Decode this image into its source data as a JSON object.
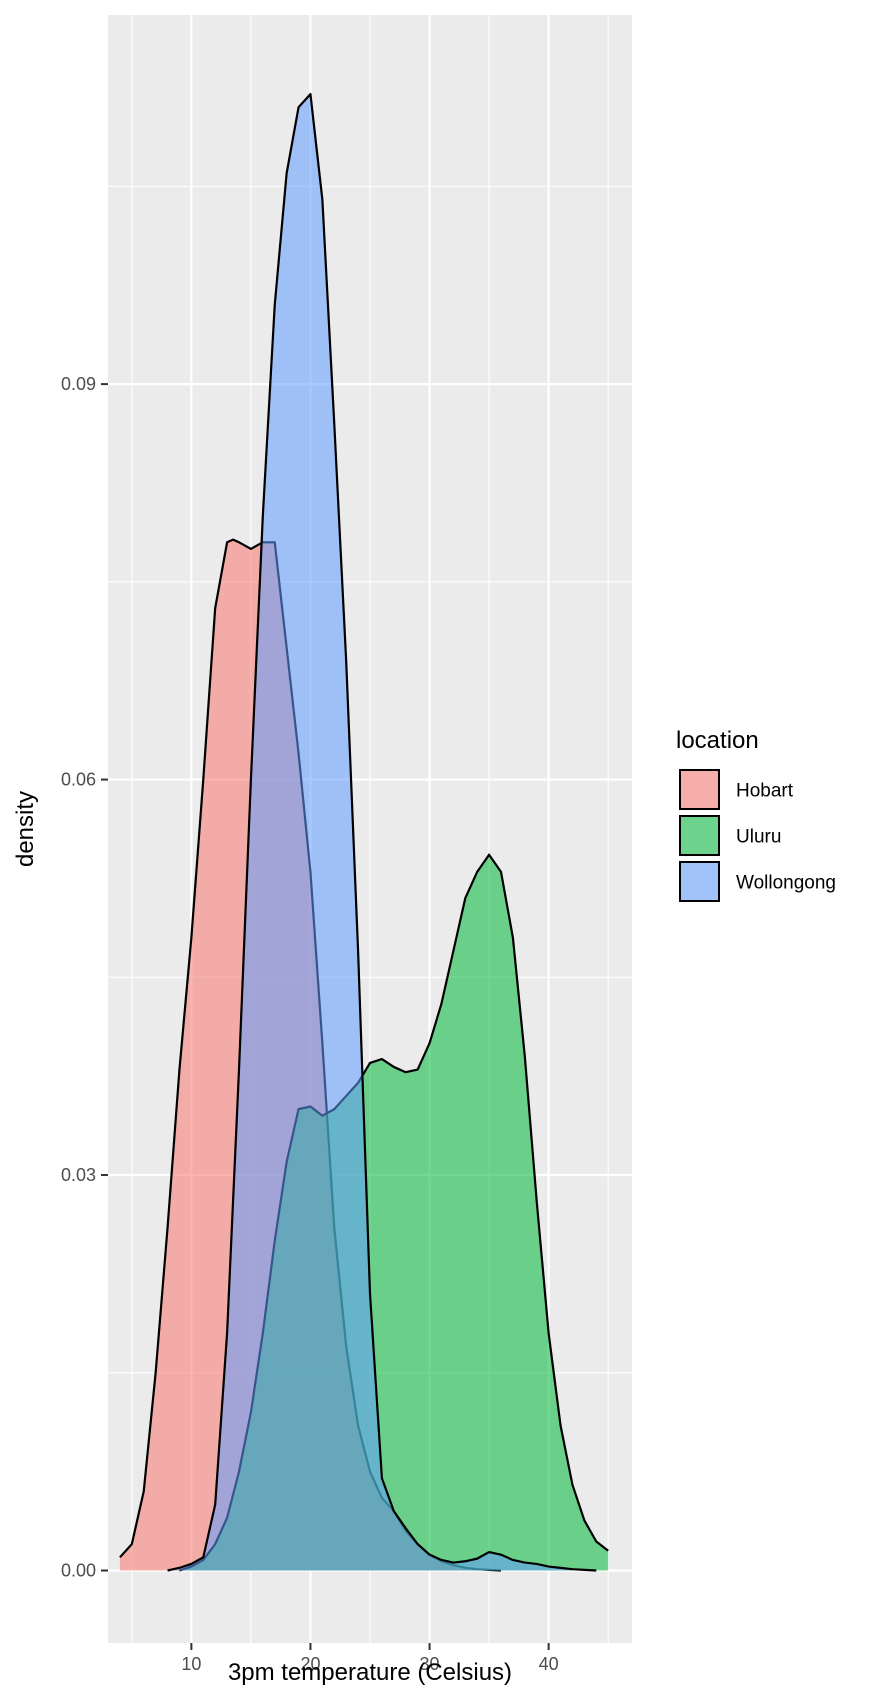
{
  "chart_data": {
    "type": "area",
    "xlabel": "3pm temperature (Celsius)",
    "ylabel": "density",
    "xlim": [
      3,
      47
    ],
    "ylim": [
      -0.0055,
      0.118
    ],
    "x_ticks": [
      10,
      20,
      30,
      40
    ],
    "x_tick_labels": [
      "10",
      "20",
      "30",
      "40"
    ],
    "y_ticks": [
      0,
      0.03,
      0.06,
      0.09
    ],
    "y_tick_labels": [
      "0.00",
      "0.03",
      "0.06",
      "0.09"
    ],
    "grid": true,
    "legend": {
      "title": "location",
      "position": "right"
    },
    "series": [
      {
        "name": "Hobart",
        "color": "#F8766D",
        "x": [
          4,
          5,
          6,
          7,
          8,
          9,
          10,
          11,
          12,
          13,
          13.5,
          14,
          15,
          16,
          17,
          18,
          19,
          20,
          21,
          22,
          23,
          24,
          25,
          26,
          27,
          28,
          29,
          30,
          31,
          32,
          33,
          34,
          35,
          36
        ],
        "y": [
          0.001,
          0.002,
          0.006,
          0.015,
          0.026,
          0.038,
          0.048,
          0.06,
          0.073,
          0.078,
          0.0782,
          0.078,
          0.0775,
          0.078,
          0.078,
          0.07,
          0.062,
          0.053,
          0.04,
          0.026,
          0.017,
          0.011,
          0.0075,
          0.0055,
          0.0045,
          0.003,
          0.002,
          0.0012,
          0.0007,
          0.0004,
          0.0002,
          0.0001,
          5e-05,
          0
        ]
      },
      {
        "name": "Uluru",
        "color": "#00BA38",
        "x": [
          9,
          10,
          11,
          12,
          13,
          14,
          15,
          16,
          17,
          18,
          19,
          20,
          21,
          22,
          23,
          24,
          25,
          26,
          27,
          28,
          29,
          30,
          31,
          32,
          33,
          34,
          35,
          36,
          37,
          38,
          39,
          40,
          41,
          42,
          43,
          44,
          45
        ],
        "y": [
          0,
          0.0003,
          0.0008,
          0.002,
          0.004,
          0.0075,
          0.012,
          0.018,
          0.025,
          0.031,
          0.035,
          0.0352,
          0.0345,
          0.035,
          0.036,
          0.037,
          0.0385,
          0.0388,
          0.0382,
          0.0378,
          0.038,
          0.04,
          0.043,
          0.047,
          0.051,
          0.053,
          0.0543,
          0.053,
          0.048,
          0.039,
          0.028,
          0.018,
          0.011,
          0.0065,
          0.0038,
          0.0022,
          0.0015
        ]
      },
      {
        "name": "Wollongong",
        "color": "#619CFF",
        "x": [
          8,
          9,
          10,
          11,
          12,
          13,
          14,
          15,
          16,
          17,
          18,
          19,
          20,
          21,
          22,
          23,
          24,
          25,
          26,
          27,
          28,
          29,
          30,
          31,
          32,
          33,
          34,
          35,
          36,
          37,
          38,
          39,
          40,
          41,
          42,
          43,
          44
        ],
        "y": [
          0,
          0.0002,
          0.0005,
          0.001,
          0.005,
          0.018,
          0.038,
          0.06,
          0.08,
          0.096,
          0.106,
          0.111,
          0.112,
          0.104,
          0.087,
          0.069,
          0.047,
          0.021,
          0.007,
          0.0045,
          0.0032,
          0.002,
          0.0012,
          0.0008,
          0.0006,
          0.0007,
          0.0009,
          0.0014,
          0.0012,
          0.0008,
          0.0006,
          0.0005,
          0.0003,
          0.0002,
          0.0001,
          5e-05,
          0
        ]
      }
    ]
  }
}
